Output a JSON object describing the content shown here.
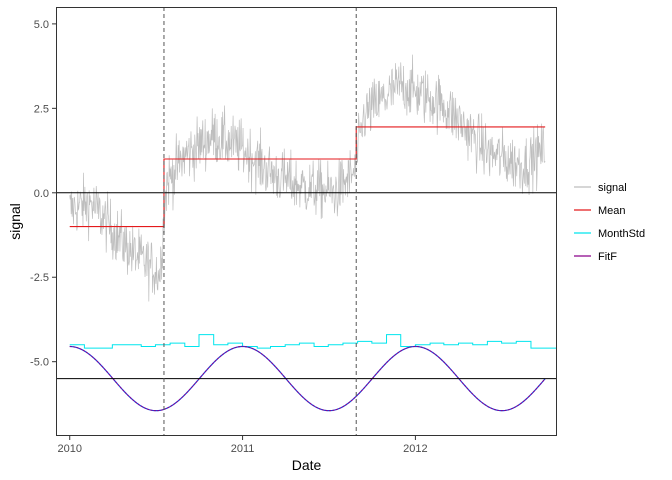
{
  "chart_data": {
    "type": "line",
    "xlabel": "Date",
    "ylabel": "signal",
    "x_range": [
      "2009-12-03",
      "2012-10-26"
    ],
    "y_range": [
      -7.2,
      5.5
    ],
    "x_ticks": [
      {
        "date": "2010-01-01",
        "label": "2010"
      },
      {
        "date": "2011-01-01",
        "label": "2011"
      },
      {
        "date": "2012-01-01",
        "label": "2012"
      }
    ],
    "y_ticks": [
      {
        "value": 5.0,
        "label": "5.0"
      },
      {
        "value": 2.5,
        "label": "2.5"
      },
      {
        "value": 0.0,
        "label": "0.0"
      },
      {
        "value": -2.5,
        "label": "-2.5"
      },
      {
        "value": -5.0,
        "label": "-5.0"
      }
    ],
    "grid": false,
    "legend_position": "right",
    "vertical_lines": [
      {
        "date": "2010-07-19",
        "style": "dashed",
        "color": "#555555"
      },
      {
        "date": "2011-08-29",
        "style": "dashed",
        "color": "#555555"
      }
    ],
    "horizontal_lines": [
      {
        "value": 0.0,
        "color": "#000000"
      },
      {
        "value": -5.5,
        "color": "#000000"
      }
    ],
    "series": [
      {
        "name": "signal",
        "color": "#bebebe",
        "kind": "noisy",
        "x_start": "2010-01-01",
        "x_end": "2012-10-01",
        "approx_points": [
          {
            "date": "2010-01-01",
            "value": -0.5
          },
          {
            "date": "2010-02-15",
            "value": -0.3
          },
          {
            "date": "2010-04-01",
            "value": -1.1
          },
          {
            "date": "2010-05-15",
            "value": -1.8
          },
          {
            "date": "2010-07-10",
            "value": -2.4
          },
          {
            "date": "2010-07-25",
            "value": 0.3
          },
          {
            "date": "2010-09-01",
            "value": 1.1
          },
          {
            "date": "2010-11-01",
            "value": 1.7
          },
          {
            "date": "2011-01-01",
            "value": 1.3
          },
          {
            "date": "2011-03-01",
            "value": 0.6
          },
          {
            "date": "2011-05-01",
            "value": 0.2
          },
          {
            "date": "2011-07-15",
            "value": 0.0
          },
          {
            "date": "2011-08-25",
            "value": 0.6
          },
          {
            "date": "2011-09-15",
            "value": 2.3
          },
          {
            "date": "2011-12-01",
            "value": 3.2
          },
          {
            "date": "2012-03-01",
            "value": 2.6
          },
          {
            "date": "2012-06-01",
            "value": 1.2
          },
          {
            "date": "2012-08-15",
            "value": 0.8
          },
          {
            "date": "2012-10-01",
            "value": 1.3
          }
        ],
        "spread": 1.1
      },
      {
        "name": "Mean",
        "color": "#e41a1c",
        "kind": "step",
        "segments": [
          {
            "x0": "2010-01-01",
            "x1": "2010-07-19",
            "value": -1.0
          },
          {
            "x0": "2010-07-19",
            "x1": "2011-08-29",
            "value": 1.0
          },
          {
            "x0": "2011-08-29",
            "x1": "2012-10-01",
            "value": 1.95
          }
        ]
      },
      {
        "name": "MonthStd",
        "color": "#00e5ee",
        "kind": "monthly-step",
        "x_start": "2010-01-01",
        "values": [
          -4.5,
          -4.6,
          -4.6,
          -4.5,
          -4.5,
          -4.55,
          -4.5,
          -4.45,
          -4.55,
          -4.2,
          -4.5,
          -4.45,
          -4.55,
          -4.6,
          -4.55,
          -4.5,
          -4.45,
          -4.55,
          -4.5,
          -4.45,
          -4.4,
          -4.45,
          -4.2,
          -4.55,
          -4.5,
          -4.45,
          -4.5,
          -4.45,
          -4.5,
          -4.4,
          -4.45,
          -4.4,
          -4.6,
          -4.6
        ]
      },
      {
        "name": "FitF",
        "color": "#8b008b",
        "kind": "sinusoid",
        "x_start": "2010-01-01",
        "x_end": "2012-10-01",
        "mean": -5.5,
        "amplitude": 0.95,
        "peak_date": "2011-01-01",
        "period_days": 365.25
      }
    ]
  }
}
